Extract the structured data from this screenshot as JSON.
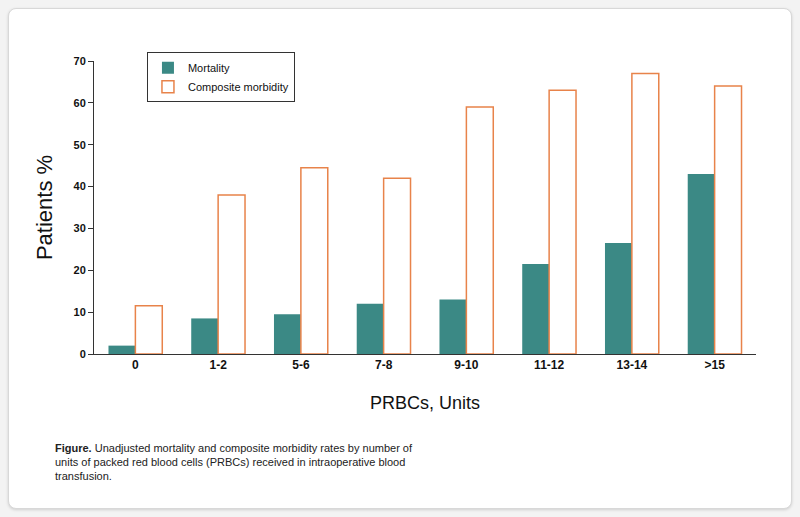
{
  "chart_data": {
    "type": "bar",
    "xlabel": "PRBCs, Units",
    "ylabel": "Patients %",
    "caption": "Figure. Unadjusted mortality and composite morbidity rates by number of units of packed red blood cells (PRBCs) received in intraoperative blood transfusion.",
    "categories": [
      "0",
      "1-2",
      "5-6",
      "7-8",
      "9-10",
      "11-12",
      "13-14",
      ">15"
    ],
    "series": [
      {
        "name": "Mortality",
        "color": "#3b8985",
        "values": [
          2,
          8.5,
          9.5,
          12,
          13,
          21.5,
          26.5,
          43
        ]
      },
      {
        "name": "Composite morbidity",
        "color": "#e8834a",
        "marker": "hollow",
        "values": [
          11.5,
          38,
          44.5,
          42,
          59,
          63,
          67,
          64
        ]
      }
    ],
    "ylim": [
      0,
      70
    ],
    "yticks": [
      0,
      10,
      20,
      30,
      40,
      50,
      60,
      70
    ],
    "grid": false,
    "legend": "top-left"
  }
}
